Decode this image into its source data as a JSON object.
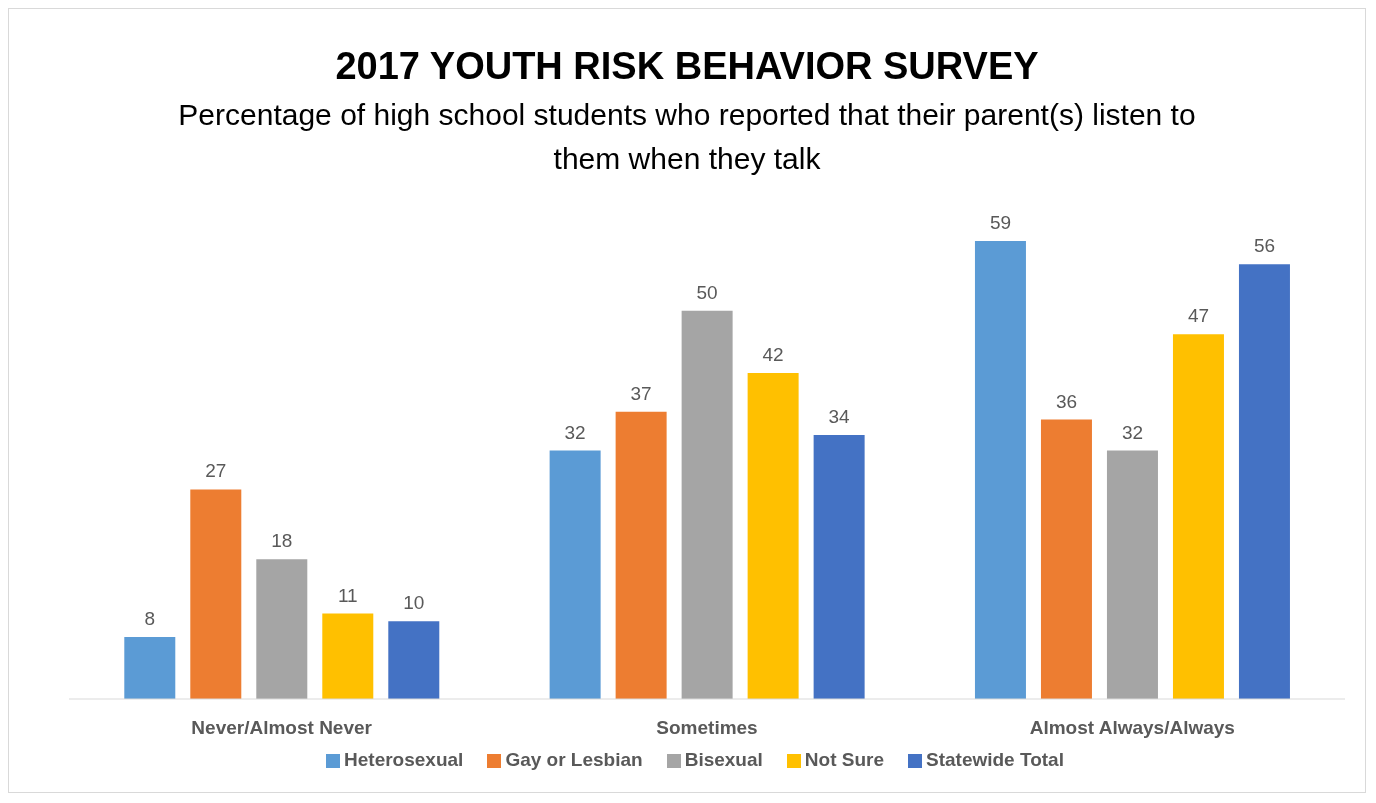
{
  "chart_data": {
    "type": "bar",
    "title": "2017 YOUTH RISK BEHAVIOR SURVEY",
    "subtitle": "Percentage of high school students who reported that their parent(s) listen to them when they talk",
    "categories": [
      "Never/Almost Never",
      "Sometimes",
      "Almost Always/Always"
    ],
    "series": [
      {
        "name": "Heterosexual",
        "color": "#5b9bd5",
        "values": [
          8,
          32,
          59
        ]
      },
      {
        "name": "Gay or Lesbian",
        "color": "#ed7d31",
        "values": [
          27,
          37,
          36
        ]
      },
      {
        "name": "Bisexual",
        "color": "#a5a5a5",
        "values": [
          18,
          50,
          32
        ]
      },
      {
        "name": "Not Sure",
        "color": "#ffc000",
        "values": [
          11,
          42,
          47
        ]
      },
      {
        "name": "Statewide Total",
        "color": "#4472c4",
        "values": [
          10,
          34,
          56
        ]
      }
    ],
    "data_labels": true,
    "legend": "bottom"
  }
}
